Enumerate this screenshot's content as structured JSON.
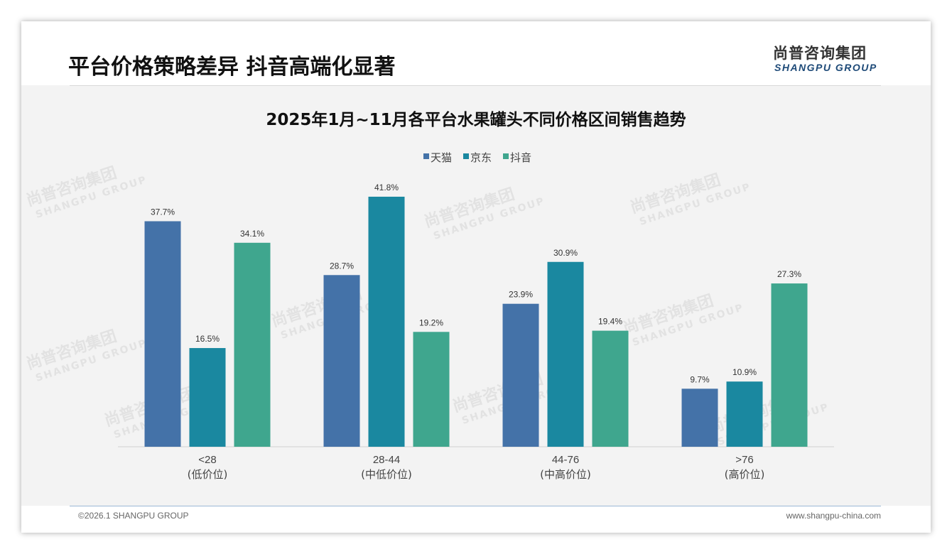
{
  "slide_title": "平台价格策略差异 抖音高端化显著",
  "logo": {
    "cn": "尚普咨询集团",
    "en": "SHANGPU GROUP"
  },
  "footer": {
    "copyright": "©2026.1 SHANGPU GROUP",
    "url": "www.shangpu-china.com"
  },
  "chart_data": {
    "type": "bar",
    "title": "2025年1月~11月各平台水果罐头不同价格区间销售趋势",
    "categories": [
      "<28",
      "28-44",
      "44-76",
      ">76"
    ],
    "category_sublabels": [
      "(低价位)",
      "(中低价位)",
      "(中高价位)",
      "(高价位)"
    ],
    "series": [
      {
        "name": "天猫",
        "color": "#4472a8",
        "values": [
          37.7,
          28.7,
          23.9,
          9.7
        ]
      },
      {
        "name": "京东",
        "color": "#1a88a0",
        "values": [
          16.5,
          41.8,
          30.9,
          10.9
        ]
      },
      {
        "name": "抖音",
        "color": "#3fa68e",
        "values": [
          34.1,
          19.2,
          19.4,
          27.3
        ]
      }
    ],
    "value_suffix": "%",
    "ylim": [
      0,
      45
    ],
    "legend_position": "top-center",
    "grid": false
  }
}
